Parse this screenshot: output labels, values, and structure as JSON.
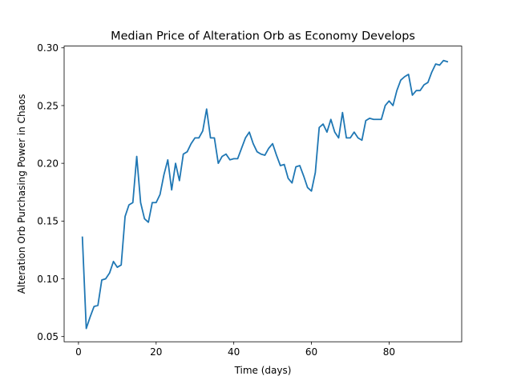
{
  "chart_data": {
    "type": "line",
    "title": "Median Price of Alteration Orb as Economy Develops",
    "xlabel": "Time (days)",
    "ylabel": "Alteration Orb Purchasing Power in Chaos",
    "xlim": [
      -3.7,
      98.7
    ],
    "ylim": [
      0.0455,
      0.3015
    ],
    "xticks": [
      0,
      20,
      40,
      60,
      80
    ],
    "xtick_labels": [
      "0",
      "20",
      "40",
      "60",
      "80"
    ],
    "yticks": [
      0.05,
      0.1,
      0.15,
      0.2,
      0.25,
      0.3
    ],
    "ytick_labels": [
      "0.05",
      "0.10",
      "0.15",
      "0.20",
      "0.25",
      "0.30"
    ],
    "grid": false,
    "color": "#1f77b4",
    "series": [
      {
        "x": [
          1,
          2,
          3,
          4,
          5,
          6,
          7,
          8,
          9,
          10,
          11,
          12,
          13,
          14,
          15,
          16,
          17,
          18,
          19,
          20,
          21,
          22,
          23,
          24,
          25,
          26,
          27,
          28,
          29,
          30,
          31,
          32,
          33,
          34,
          35,
          36,
          37,
          38,
          39,
          40,
          41,
          42,
          43,
          44,
          45,
          46,
          47,
          48,
          49,
          50,
          51,
          52,
          53,
          54,
          55,
          56,
          57,
          58,
          59,
          60,
          61,
          62,
          63,
          64,
          65,
          66,
          67,
          68,
          69,
          70,
          71,
          72,
          73,
          74,
          75,
          76,
          77,
          78,
          79,
          80,
          81,
          82,
          83,
          84,
          85,
          86,
          87,
          88,
          89,
          90,
          91,
          92,
          93,
          94,
          95
        ],
        "y": [
          0.136,
          0.057,
          0.067,
          0.076,
          0.077,
          0.099,
          0.1,
          0.105,
          0.115,
          0.11,
          0.112,
          0.154,
          0.164,
          0.166,
          0.206,
          0.166,
          0.152,
          0.149,
          0.166,
          0.166,
          0.173,
          0.19,
          0.203,
          0.177,
          0.2,
          0.185,
          0.208,
          0.21,
          0.217,
          0.222,
          0.222,
          0.228,
          0.247,
          0.222,
          0.222,
          0.2,
          0.206,
          0.208,
          0.203,
          0.204,
          0.204,
          0.213,
          0.222,
          0.227,
          0.217,
          0.21,
          0.208,
          0.207,
          0.213,
          0.217,
          0.207,
          0.198,
          0.199,
          0.187,
          0.183,
          0.197,
          0.198,
          0.189,
          0.179,
          0.176,
          0.192,
          0.231,
          0.234,
          0.227,
          0.238,
          0.227,
          0.222,
          0.244,
          0.222,
          0.222,
          0.227,
          0.222,
          0.22,
          0.237,
          0.239,
          0.238,
          0.238,
          0.238,
          0.25,
          0.254,
          0.25,
          0.263,
          0.272,
          0.275,
          0.277,
          0.259,
          0.263,
          0.263,
          0.268,
          0.27,
          0.279,
          0.286,
          0.285,
          0.289,
          0.288
        ]
      }
    ]
  }
}
